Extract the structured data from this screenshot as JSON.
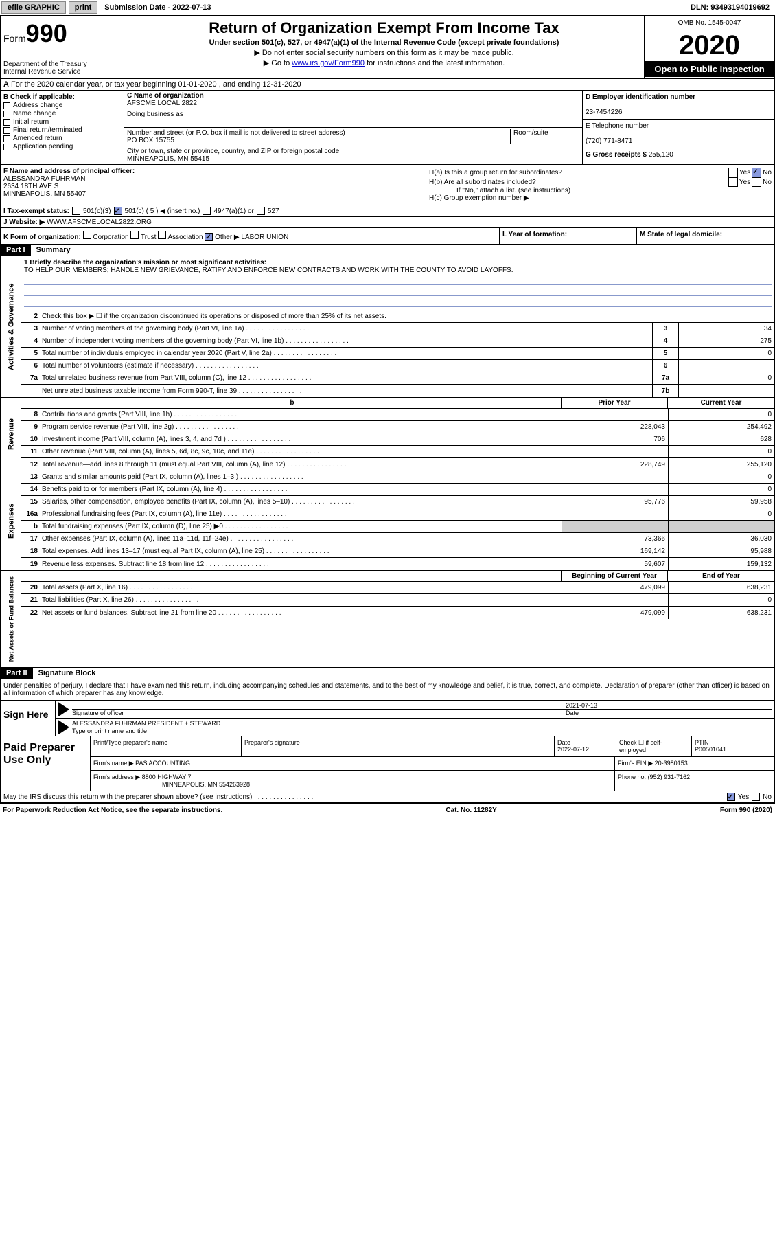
{
  "topbar": {
    "efile": "efile GRAPHIC",
    "print": "print",
    "sub_date_label": "Submission Date - 2022-07-13",
    "dln": "DLN: 93493194019692"
  },
  "header": {
    "form_label": "Form",
    "form_num": "990",
    "dept": "Department of the Treasury\nInternal Revenue Service",
    "title": "Return of Organization Exempt From Income Tax",
    "subtitle": "Under section 501(c), 527, or 4947(a)(1) of the Internal Revenue Code (except private foundations)",
    "note1": "▶ Do not enter social security numbers on this form as it may be made public.",
    "note2_pre": "▶ Go to ",
    "note2_link": "www.irs.gov/Form990",
    "note2_post": " for instructions and the latest information.",
    "omb": "OMB No. 1545-0047",
    "year": "2020",
    "inspect": "Open to Public Inspection"
  },
  "period": "For the 2020 calendar year, or tax year beginning 01-01-2020    , and ending 12-31-2020",
  "box_b": {
    "label": "B Check if applicable:",
    "items": [
      "Address change",
      "Name change",
      "Initial return",
      "Final return/terminated",
      "Amended return",
      "Application pending"
    ]
  },
  "box_c": {
    "name_label": "C Name of organization",
    "name": "AFSCME LOCAL 2822",
    "dba_label": "Doing business as",
    "addr_label": "Number and street (or P.O. box if mail is not delivered to street address)",
    "room_label": "Room/suite",
    "addr": "PO BOX 15755",
    "city_label": "City or town, state or province, country, and ZIP or foreign postal code",
    "city": "MINNEAPOLIS, MN  55415"
  },
  "box_d": {
    "ein_label": "D Employer identification number",
    "ein": "23-7454226",
    "phone_label": "E Telephone number",
    "phone": "(720) 771-8471",
    "gross_label": "G Gross receipts $",
    "gross": "255,120"
  },
  "box_f": {
    "label": "F Name and address of principal officer:",
    "name": "ALESSANDRA FUHRMAN",
    "addr1": "2634 18TH AVE S",
    "addr2": "MINNEAPOLIS, MN  55407"
  },
  "box_h": {
    "ha": "H(a)  Is this a group return for subordinates?",
    "hb": "H(b)  Are all subordinates included?",
    "hb_note": "If \"No,\" attach a list. (see instructions)",
    "hc": "H(c)  Group exemption number ▶",
    "yes": "Yes",
    "no": "No"
  },
  "row_i": {
    "label": "I   Tax-exempt status:",
    "o1": "501(c)(3)",
    "o2": "501(c) ( 5 ) ◀ (insert no.)",
    "o3": "4947(a)(1) or",
    "o4": "527"
  },
  "row_j": {
    "label": "J   Website: ▶",
    "value": "WWW.AFSCMELOCAL2822.ORG"
  },
  "row_k": {
    "label": "K Form of organization:",
    "corp": "Corporation",
    "trust": "Trust",
    "assoc": "Association",
    "other": "Other ▶",
    "other_val": "LABOR UNION",
    "year_label": "L Year of formation:",
    "state_label": "M State of legal domicile:"
  },
  "part1": {
    "header": "Part I",
    "title": "Summary",
    "mission_label": "1  Briefly describe the organization's mission or most significant activities:",
    "mission": "TO HELP OUR MEMBERS; HANDLE NEW GRIEVANCE, RATIFY AND ENFORCE NEW CONTRACTS AND WORK WITH THE COUNTY TO AVOID LAYOFFS.",
    "line2": "Check this box ▶ ☐  if the organization discontinued its operations or disposed of more than 25% of its net assets.",
    "vtab_gov": "Activities & Governance",
    "vtab_rev": "Revenue",
    "vtab_exp": "Expenses",
    "vtab_net": "Net Assets or Fund Balances",
    "prior_label": "Prior Year",
    "current_label": "Current Year",
    "begin_label": "Beginning of Current Year",
    "end_label": "End of Year",
    "lines_gov": [
      {
        "n": "3",
        "d": "Number of voting members of the governing body (Part VI, line 1a)",
        "c": "3",
        "v": "34"
      },
      {
        "n": "4",
        "d": "Number of independent voting members of the governing body (Part VI, line 1b)",
        "c": "4",
        "v": "275"
      },
      {
        "n": "5",
        "d": "Total number of individuals employed in calendar year 2020 (Part V, line 2a)",
        "c": "5",
        "v": "0"
      },
      {
        "n": "6",
        "d": "Total number of volunteers (estimate if necessary)",
        "c": "6",
        "v": ""
      },
      {
        "n": "7a",
        "d": "Total unrelated business revenue from Part VIII, column (C), line 12",
        "c": "7a",
        "v": "0"
      },
      {
        "n": "",
        "d": "Net unrelated business taxable income from Form 990-T, line 39",
        "c": "7b",
        "v": ""
      }
    ],
    "lines_rev": [
      {
        "n": "8",
        "d": "Contributions and grants (Part VIII, line 1h)",
        "p": "",
        "c": "0"
      },
      {
        "n": "9",
        "d": "Program service revenue (Part VIII, line 2g)",
        "p": "228,043",
        "c": "254,492"
      },
      {
        "n": "10",
        "d": "Investment income (Part VIII, column (A), lines 3, 4, and 7d )",
        "p": "706",
        "c": "628"
      },
      {
        "n": "11",
        "d": "Other revenue (Part VIII, column (A), lines 5, 6d, 8c, 9c, 10c, and 11e)",
        "p": "",
        "c": "0"
      },
      {
        "n": "12",
        "d": "Total revenue—add lines 8 through 11 (must equal Part VIII, column (A), line 12)",
        "p": "228,749",
        "c": "255,120"
      }
    ],
    "lines_exp": [
      {
        "n": "13",
        "d": "Grants and similar amounts paid (Part IX, column (A), lines 1–3 )",
        "p": "",
        "c": "0"
      },
      {
        "n": "14",
        "d": "Benefits paid to or for members (Part IX, column (A), line 4)",
        "p": "",
        "c": "0"
      },
      {
        "n": "15",
        "d": "Salaries, other compensation, employee benefits (Part IX, column (A), lines 5–10)",
        "p": "95,776",
        "c": "59,958"
      },
      {
        "n": "16a",
        "d": "Professional fundraising fees (Part IX, column (A), line 11e)",
        "p": "",
        "c": "0"
      },
      {
        "n": "b",
        "d": "Total fundraising expenses (Part IX, column (D), line 25) ▶0",
        "p": "shade",
        "c": "shade"
      },
      {
        "n": "17",
        "d": "Other expenses (Part IX, column (A), lines 11a–11d, 11f–24e)",
        "p": "73,366",
        "c": "36,030"
      },
      {
        "n": "18",
        "d": "Total expenses. Add lines 13–17 (must equal Part IX, column (A), line 25)",
        "p": "169,142",
        "c": "95,988"
      },
      {
        "n": "19",
        "d": "Revenue less expenses. Subtract line 18 from line 12",
        "p": "59,607",
        "c": "159,132"
      }
    ],
    "lines_net": [
      {
        "n": "20",
        "d": "Total assets (Part X, line 16)",
        "p": "479,099",
        "c": "638,231"
      },
      {
        "n": "21",
        "d": "Total liabilities (Part X, line 26)",
        "p": "",
        "c": "0"
      },
      {
        "n": "22",
        "d": "Net assets or fund balances. Subtract line 21 from line 20",
        "p": "479,099",
        "c": "638,231"
      }
    ]
  },
  "part2": {
    "header": "Part II",
    "title": "Signature Block",
    "declaration": "Under penalties of perjury, I declare that I have examined this return, including accompanying schedules and statements, and to the best of my knowledge and belief, it is true, correct, and complete. Declaration of preparer (other than officer) is based on all information of which preparer has any knowledge.",
    "sign_here": "Sign Here",
    "sig_officer": "Signature of officer",
    "date_label": "Date",
    "date": "2021-07-13",
    "name_title": "ALESSANDRA FUHRMAN PRESIDENT + STEWARD",
    "type_label": "Type or print name and title"
  },
  "preparer": {
    "label": "Paid Preparer Use Only",
    "print_name": "Print/Type preparer's name",
    "sig": "Preparer's signature",
    "date_label": "Date",
    "date": "2022-07-12",
    "check_label": "Check ☐ if self-employed",
    "ptin_label": "PTIN",
    "ptin": "P00501041",
    "firm_name_label": "Firm's name    ▶",
    "firm_name": "PAS ACCOUNTING",
    "firm_ein_label": "Firm's EIN ▶",
    "firm_ein": "20-3980153",
    "firm_addr_label": "Firm's address ▶",
    "firm_addr": "8800 HIGHWAY 7",
    "firm_city": "MINNEAPOLIS, MN  554263928",
    "phone_label": "Phone no.",
    "phone": "(952) 931-7162"
  },
  "discuss": {
    "text": "May the IRS discuss this return with the preparer shown above? (see instructions)",
    "yes": "Yes",
    "no": "No"
  },
  "footer": {
    "left": "For Paperwork Reduction Act Notice, see the separate instructions.",
    "mid": "Cat. No. 11282Y",
    "right": "Form 990 (2020)"
  }
}
